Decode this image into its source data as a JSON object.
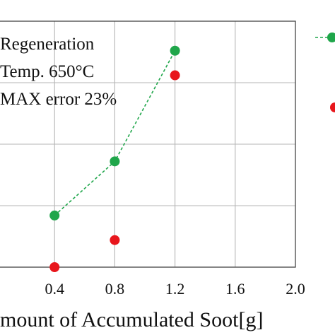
{
  "chart_data": {
    "type": "scatter",
    "title": "",
    "xlabel": "mount of Accumulated Soot[g]",
    "ylabel": "",
    "xlim": [
      0,
      2.0
    ],
    "x_ticks": [
      "0.4",
      "0.8",
      "1.2",
      "1.6",
      "2.0"
    ],
    "ylim": [
      0,
      1
    ],
    "grid": true,
    "annotations": [
      "Regeneration",
      "Temp. 650°C",
      "MAX error  23%"
    ],
    "legend": {
      "placement": "top-right, outside plot"
    },
    "series": [
      {
        "style": "green markers, dashed line",
        "color": "#1fa64a",
        "x": [
          0.4,
          0.8,
          1.2
        ],
        "y": [
          0.21,
          0.43,
          0.88
        ]
      },
      {
        "style": "red markers",
        "color": "#e8161c",
        "x": [
          0.4,
          0.8,
          1.2
        ],
        "y": [
          0.0,
          0.11,
          0.78
        ]
      }
    ]
  }
}
